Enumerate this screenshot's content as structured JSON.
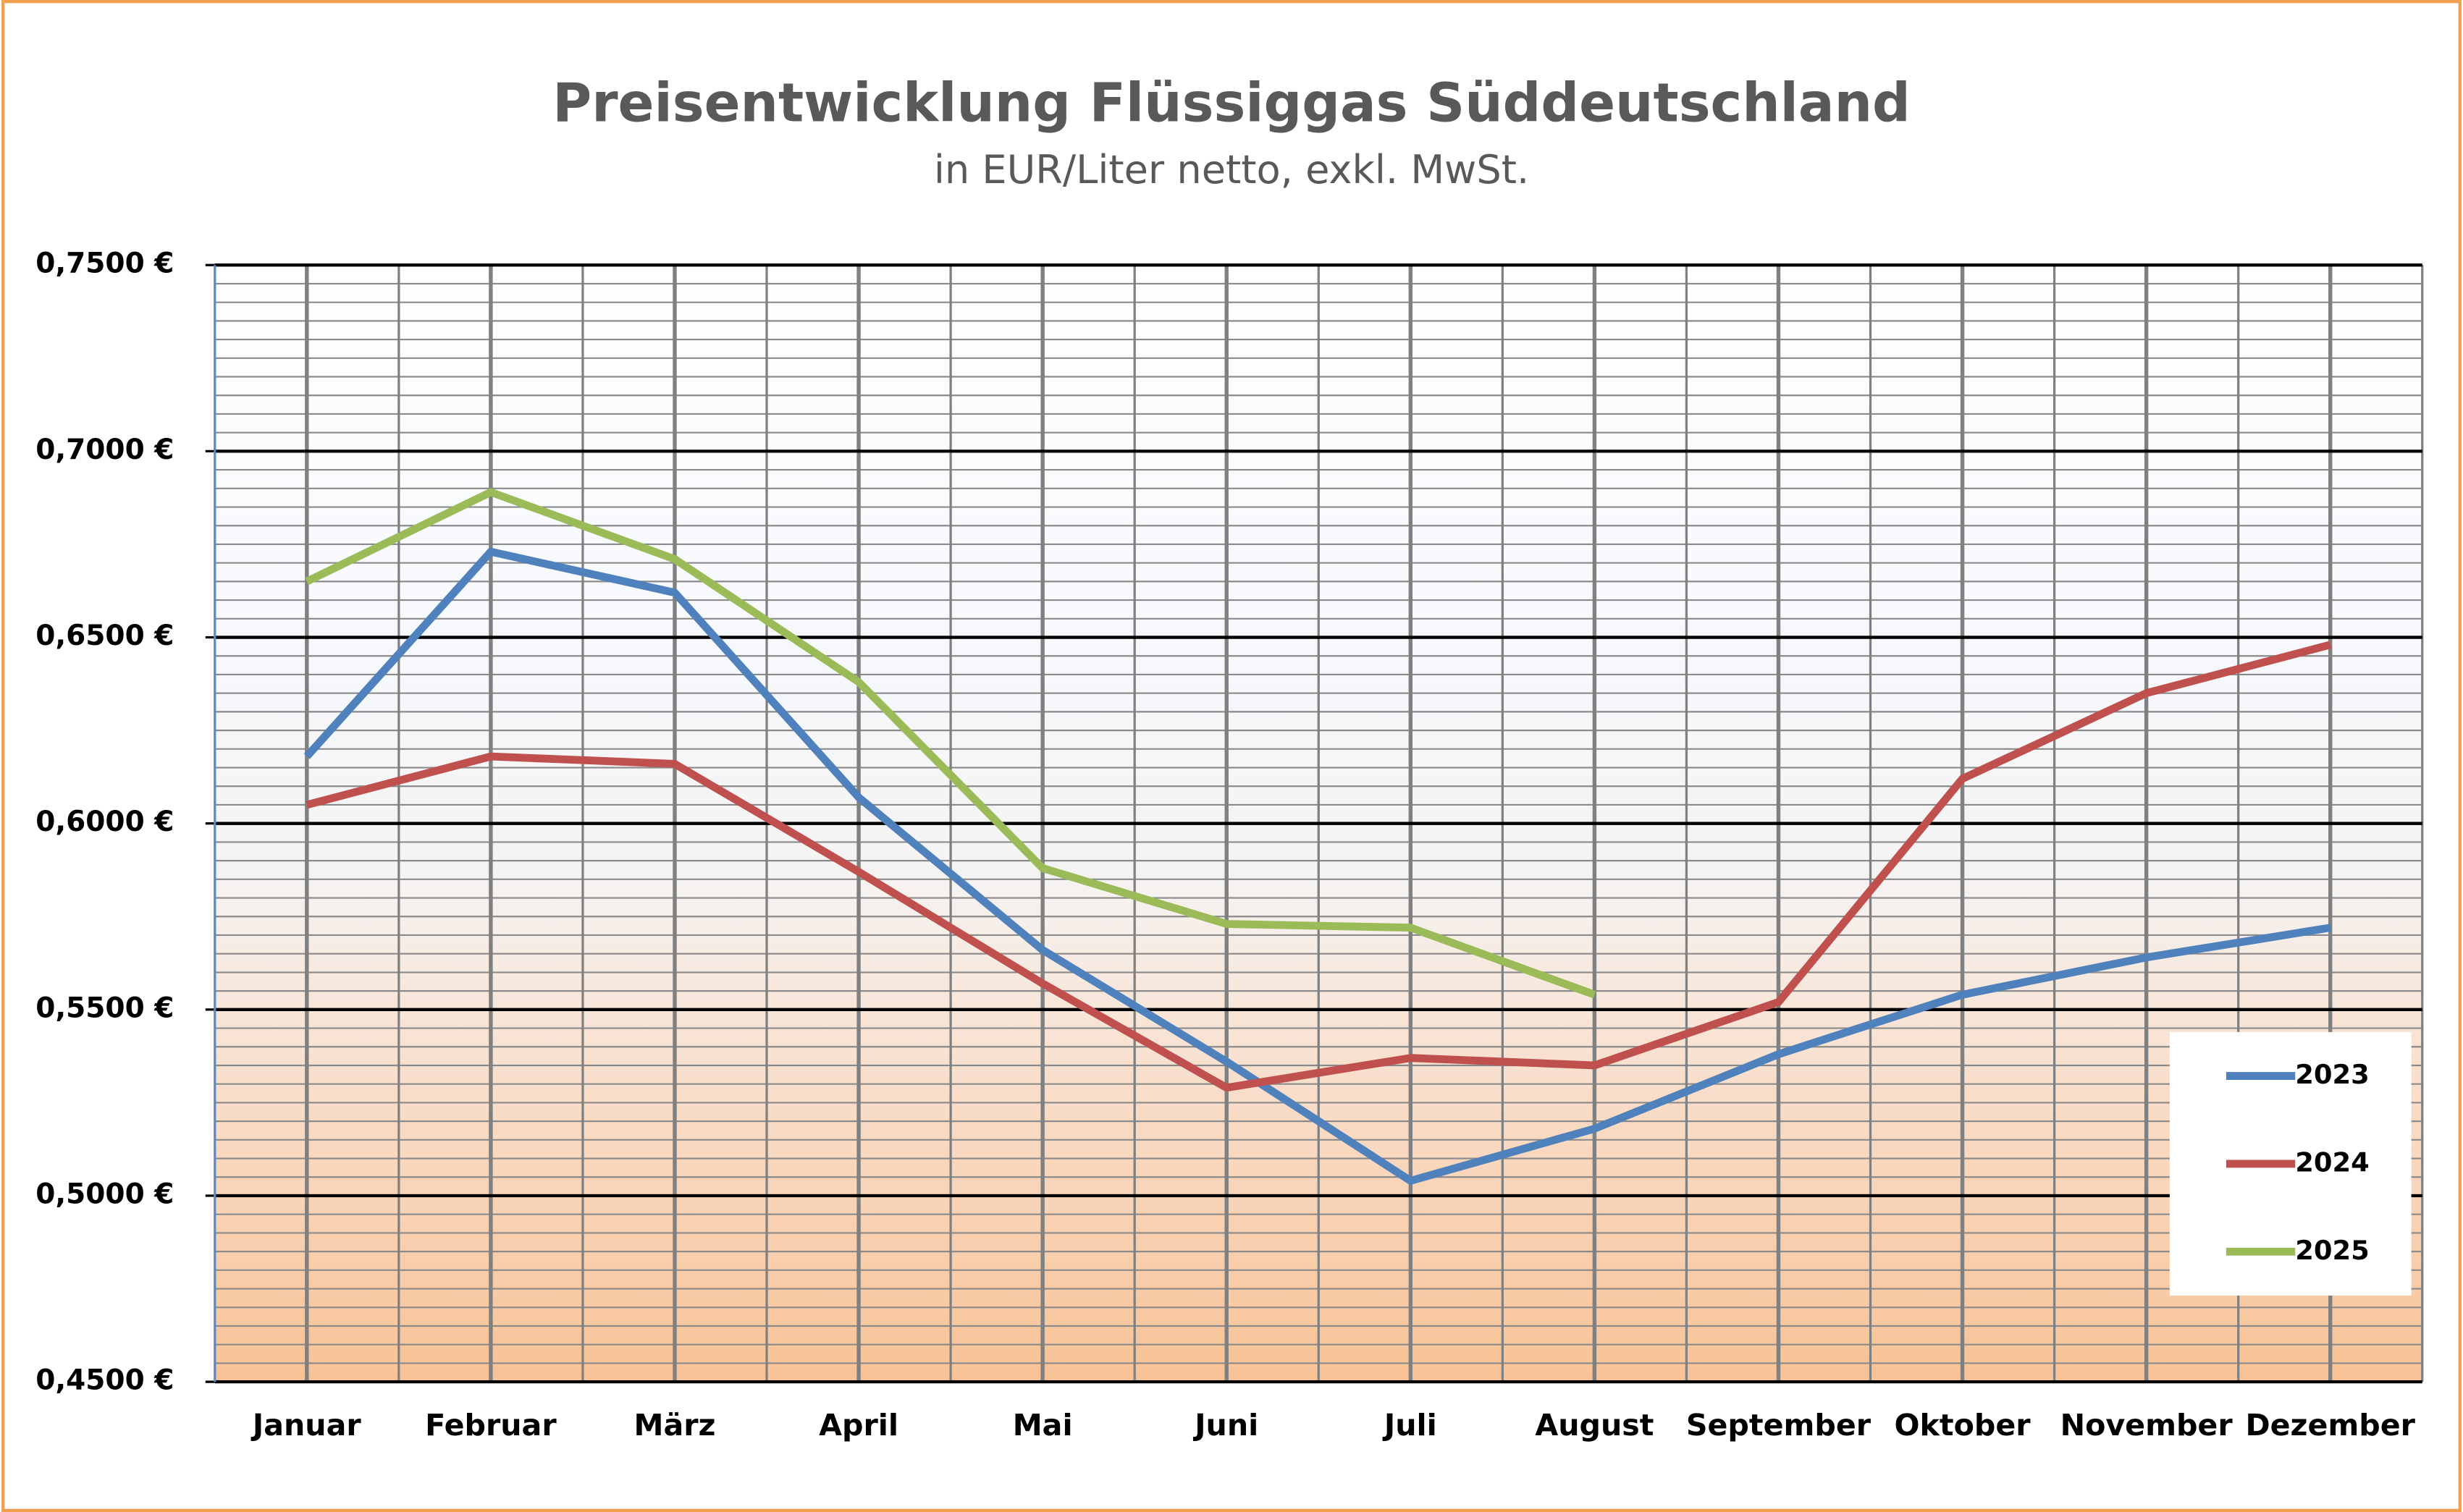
{
  "chart_data": {
    "type": "line",
    "title": "Preisentwicklung Flüssiggas Süddeutschland",
    "subtitle": "in EUR/Liter netto, exkl. MwSt.",
    "categories": [
      "Januar",
      "Februar",
      "März",
      "April",
      "Mai",
      "Juni",
      "Juli",
      "August",
      "September",
      "Oktober",
      "November",
      "Dezember"
    ],
    "series": [
      {
        "name": "2023",
        "color": "#4f81bd",
        "values": [
          0.618,
          0.673,
          0.662,
          0.607,
          0.566,
          0.536,
          0.504,
          0.518,
          0.538,
          0.554,
          0.564,
          0.572
        ]
      },
      {
        "name": "2024",
        "color": "#c0504d",
        "values": [
          0.605,
          0.618,
          0.616,
          0.587,
          0.557,
          0.529,
          0.537,
          0.535,
          0.552,
          0.612,
          0.635,
          0.648
        ]
      },
      {
        "name": "2025",
        "color": "#9bbb59",
        "values": [
          0.665,
          0.689,
          0.671,
          0.638,
          0.588,
          0.573,
          0.572,
          0.554,
          null,
          null,
          null,
          null
        ]
      }
    ],
    "ylim": [
      0.45,
      0.75
    ],
    "yticks": [
      {
        "value": 0.45,
        "label": "0,4500 €"
      },
      {
        "value": 0.5,
        "label": "0,5000 €"
      },
      {
        "value": 0.55,
        "label": "0,5500 €"
      },
      {
        "value": 0.6,
        "label": "0,6000 €"
      },
      {
        "value": 0.65,
        "label": "0,6500 €"
      },
      {
        "value": 0.7,
        "label": "0,7000 €"
      },
      {
        "value": 0.75,
        "label": "0,7500 €"
      }
    ],
    "grid": true,
    "minor_grid": true,
    "legend": "lower right"
  }
}
